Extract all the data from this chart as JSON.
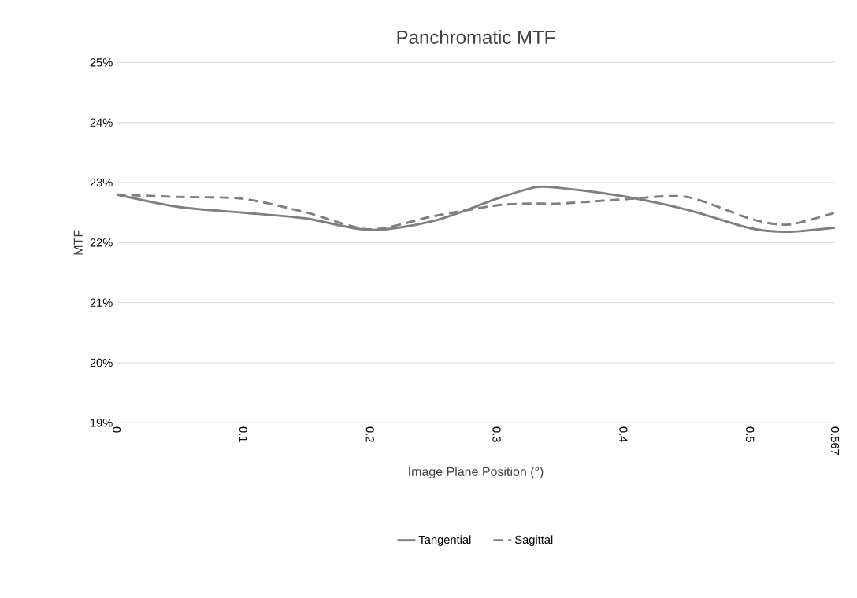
{
  "chart_data": {
    "type": "line",
    "title": "Panchromatic MTF",
    "xlabel": "Image Plane Position (°)",
    "ylabel": "MTF",
    "xlim": [
      0,
      0.567
    ],
    "xticks": [
      0,
      0.1,
      0.2,
      0.3,
      0.4,
      0.5,
      0.567
    ],
    "ylim": [
      19,
      25
    ],
    "yticks": [
      {
        "value": 19,
        "label": "19%"
      },
      {
        "value": 20,
        "label": "20%"
      },
      {
        "value": 21,
        "label": "21%"
      },
      {
        "value": 22,
        "label": "22%"
      },
      {
        "value": 23,
        "label": "23%"
      },
      {
        "value": 24,
        "label": "24%"
      },
      {
        "value": 25,
        "label": "25%"
      }
    ],
    "grid": "y",
    "legend": "bottom",
    "marker": "none",
    "x": [
      0,
      0.05,
      0.1,
      0.15,
      0.2,
      0.25,
      0.3,
      0.33,
      0.35,
      0.4,
      0.45,
      0.5,
      0.53,
      0.567
    ],
    "series": [
      {
        "name": "Tangential",
        "color": "#7f7f7f",
        "line_style": "solid",
        "values": [
          22.8,
          22.59,
          22.5,
          22.4,
          22.21,
          22.36,
          22.73,
          22.92,
          22.91,
          22.77,
          22.55,
          22.24,
          22.18,
          22.25
        ]
      },
      {
        "name": "Sagittal",
        "color": "#7f7f7f",
        "line_style": "dashed",
        "values": [
          22.8,
          22.76,
          22.73,
          22.5,
          22.22,
          22.44,
          22.62,
          22.65,
          22.65,
          22.72,
          22.76,
          22.4,
          22.3,
          22.5
        ]
      }
    ]
  }
}
